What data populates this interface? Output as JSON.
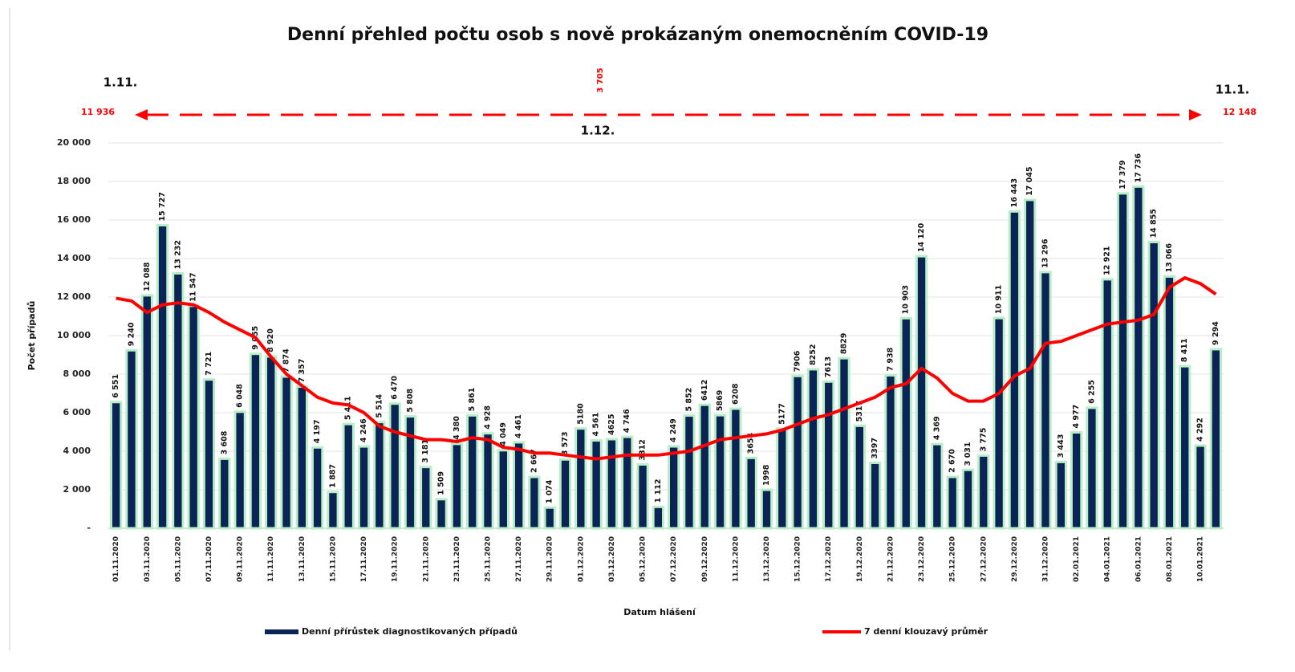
{
  "chart_data": {
    "type": "bar-line",
    "title": "Denní přehled počtu osob s nově prokázaným onemocněním COVID-19",
    "x_label": "Datum hlášení",
    "y_label": "Počet případů",
    "annotations": [
      "1.11.",
      "11 936",
      "3 705",
      "1.12.",
      "11.1.",
      "12 148"
    ],
    "categories": [
      "01.11.2020",
      null,
      "03.11.2020",
      null,
      "05.11.2020",
      null,
      "07.11.2020",
      null,
      "09.11.2020",
      null,
      "11.11.2020",
      null,
      "13.11.2020",
      null,
      "15.11.2020",
      null,
      "17.11.2020",
      null,
      "19.11.2020",
      null,
      "21.11.2020",
      null,
      "23.11.2020",
      null,
      "25.11.2020",
      null,
      "27.11.2020",
      null,
      "29.11.2020",
      null,
      "01.12.2020",
      null,
      "03.12.2020",
      null,
      "05.12.2020",
      null,
      "07.12.2020",
      null,
      "09.12.2020",
      null,
      "11.12.2020",
      null,
      "13.12.2020",
      null,
      "15.12.2020",
      null,
      "17.12.2020",
      null,
      "19.12.2020",
      null,
      "21.12.2020",
      null,
      "23.12.2020",
      null,
      "25.12.2020",
      null,
      "27.12.2020",
      null,
      "29.12.2020",
      null,
      "31.12.2020",
      null,
      "02.01.2021",
      null,
      "04.01.2021",
      null,
      "06.01.2021",
      null,
      "08.01.2021",
      null,
      "10.01.2021",
      null
    ],
    "series": [
      {
        "name": "Denní přírůstek diagnostikovaných případů",
        "type": "bar",
        "color": "#0b2456",
        "edge": "#b8efc9",
        "values": [
          6551,
          9240,
          12088,
          15727,
          13232,
          11547,
          7721,
          3608,
          6048,
          9055,
          8920,
          7874,
          7357,
          4197,
          1887,
          5411,
          4246,
          5514,
          6470,
          5808,
          3181,
          1509,
          4380,
          5861,
          4928,
          4049,
          4461,
          2667,
          1074,
          3573,
          5180,
          4561,
          4625,
          4746,
          3312,
          1112,
          4249,
          5852,
          6412,
          5869,
          6208,
          3654,
          1998,
          5177,
          7906,
          8252,
          7613,
          8829,
          5317,
          3397,
          7938,
          10903,
          14120,
          4369,
          2670,
          3031,
          3775,
          10911,
          16443,
          17045,
          13296,
          3443,
          4977,
          6255,
          12921,
          17379,
          17736,
          14855,
          13066,
          8411,
          4292,
          9294
        ],
        "value_labels": [
          "6 551",
          "9 240",
          "12 088",
          "15 727",
          "13 232",
          "11 547",
          "7 721",
          "3 608",
          "6 048",
          "9 055",
          "8 920",
          "7 874",
          "7 357",
          "4 197",
          "1 887",
          "5 411",
          "4 246",
          "5 514",
          "6 470",
          "5 808",
          "3 181",
          "1 509",
          "4 380",
          "5 861",
          "4 928",
          "4 049",
          "4 461",
          "2 667",
          "1 074",
          "3 573",
          "5180",
          "4 561",
          "4625",
          "4 746",
          "3312",
          "1 112",
          "4 249",
          "5 852",
          "6412",
          "5869",
          "6208",
          "3654",
          "1998",
          "5177",
          "7906",
          "8252",
          "7613",
          "8829",
          "5317",
          "3397",
          "7 938",
          "10 903",
          "14 120",
          "4 369",
          "2 670",
          "3 031",
          "3 775",
          "10 911",
          "16 443",
          "17 045",
          "13 296",
          "3 443",
          "4 977",
          "6 255",
          "12 921",
          "17 379",
          "17 736",
          "14 855",
          "13 066",
          "8 411",
          "4 292",
          "9 294"
        ]
      },
      {
        "name": "7 denní klouzavý průměr",
        "type": "line",
        "color": "#ff0000",
        "values": [
          11936,
          11800,
          11200,
          11600,
          11700,
          11600,
          11200,
          10700,
          10300,
          9900,
          8900,
          8000,
          7400,
          6800,
          6500,
          6400,
          6000,
          5300,
          5000,
          4800,
          4600,
          4600,
          4500,
          4700,
          4600,
          4200,
          4100,
          3900,
          3900,
          3800,
          3700,
          3600,
          3700,
          3800,
          3800,
          3800,
          3900,
          4000,
          4300,
          4600,
          4700,
          4800,
          4900,
          5100,
          5400,
          5700,
          5900,
          6200,
          6500,
          6800,
          7300,
          7500,
          8300,
          7800,
          7000,
          6600,
          6600,
          7000,
          7900,
          8300,
          9600,
          9700,
          10000,
          10300,
          10600,
          10700,
          10800,
          11100,
          12500,
          13000,
          12700,
          12148
        ]
      }
    ],
    "ylim": [
      0,
      20000
    ],
    "yticks": [
      {
        "value": 0,
        "label": "-"
      },
      {
        "value": 2000,
        "label": "2 000"
      },
      {
        "value": 4000,
        "label": "4 000"
      },
      {
        "value": 6000,
        "label": "6 000"
      },
      {
        "value": 8000,
        "label": "8 000"
      },
      {
        "value": 10000,
        "label": "10 000"
      },
      {
        "value": 12000,
        "label": "12 000"
      },
      {
        "value": 14000,
        "label": "14 000"
      },
      {
        "value": 16000,
        "label": "16 000"
      },
      {
        "value": 18000,
        "label": "18 000"
      },
      {
        "value": 20000,
        "label": "20 000"
      }
    ],
    "grid": true
  }
}
